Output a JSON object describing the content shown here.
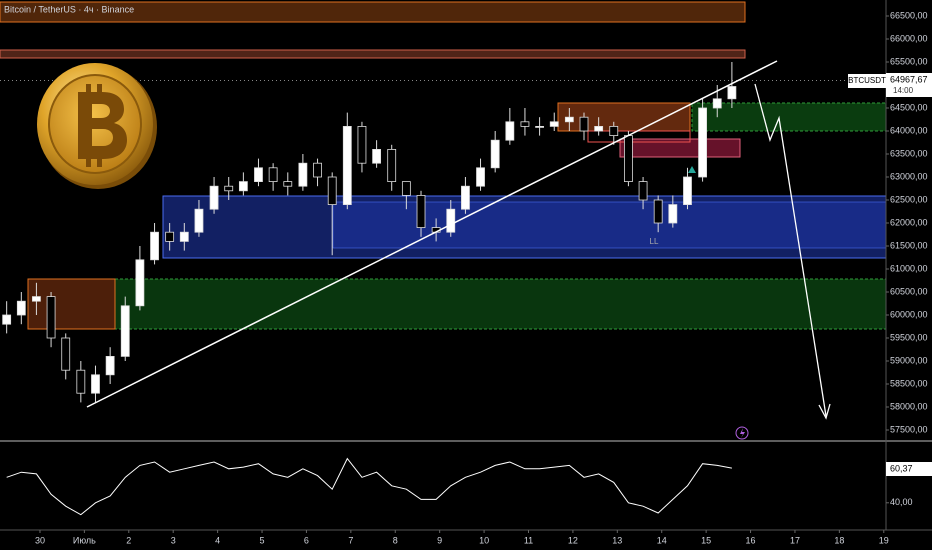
{
  "chart_data": [
    {
      "type": "candlestick",
      "title": "Bitcoin / TetherUS · 4ч · Binance",
      "symbol": "BTCUSDT",
      "last_label": "64967,67",
      "time_left": "14:00",
      "annotations": [
        "LL"
      ],
      "up_color": "#ffffff",
      "down_color": "#000000",
      "x": [
        -1.75,
        -1.42,
        -1.08,
        -0.75,
        -0.42,
        -0.08,
        0.25,
        0.58,
        0.92,
        1.25,
        1.58,
        1.92,
        2.25,
        2.58,
        2.92,
        3.25,
        3.58,
        3.92,
        4.25,
        4.58,
        4.92,
        5.25,
        5.58,
        5.92,
        6.25,
        6.58,
        6.92,
        7.25,
        7.58,
        7.92,
        8.25,
        8.58,
        8.92,
        9.25,
        9.58,
        9.92,
        10.25,
        10.58,
        10.92,
        11.25,
        11.58,
        11.92,
        12.25,
        12.58,
        12.92,
        13.25,
        13.58,
        13.92,
        14.25,
        14.58
      ],
      "open": [
        59800,
        60000,
        60300,
        60400,
        59500,
        58800,
        58300,
        58700,
        59100,
        60200,
        61200,
        61800,
        61600,
        61800,
        62300,
        62800,
        62700,
        62900,
        63200,
        62900,
        62800,
        63300,
        63000,
        62400,
        64100,
        63300,
        63600,
        62900,
        62600,
        61900,
        61800,
        62300,
        62800,
        63200,
        63800,
        64200,
        64100,
        64100,
        64200,
        64300,
        64000,
        64100,
        63900,
        62900,
        62500,
        62000,
        62400,
        63000,
        64500,
        64700
      ],
      "high": [
        60300,
        60500,
        60700,
        60500,
        59600,
        59000,
        58900,
        59300,
        60400,
        61500,
        62000,
        62000,
        62000,
        62500,
        63000,
        63000,
        63100,
        63400,
        63300,
        63100,
        63500,
        63400,
        63100,
        64400,
        64200,
        63800,
        63700,
        62900,
        62700,
        62100,
        62500,
        63000,
        63400,
        64000,
        64500,
        64500,
        64300,
        64400,
        64500,
        64400,
        64300,
        64200,
        64000,
        63000,
        62600,
        62600,
        63200,
        64700,
        65000,
        65500
      ],
      "low": [
        59600,
        59800,
        60000,
        59300,
        58600,
        58100,
        58100,
        58500,
        59000,
        60100,
        61100,
        61400,
        61400,
        61700,
        62200,
        62500,
        62600,
        62800,
        62700,
        62600,
        62700,
        62800,
        61300,
        62300,
        63100,
        63200,
        62700,
        62300,
        61700,
        61600,
        61700,
        62200,
        62700,
        63100,
        63700,
        63900,
        63900,
        64000,
        64000,
        63800,
        63900,
        63700,
        62800,
        62300,
        61800,
        61900,
        62300,
        62900,
        64300,
        64500
      ],
      "close": [
        60000,
        60300,
        60400,
        59500,
        58800,
        58300,
        58700,
        59100,
        60200,
        61200,
        61800,
        61600,
        61800,
        62300,
        62800,
        62700,
        62900,
        63200,
        62900,
        62800,
        63300,
        63000,
        62400,
        64100,
        63300,
        63600,
        62900,
        62600,
        61900,
        61800,
        62300,
        62800,
        63200,
        63800,
        64200,
        64100,
        64100,
        64200,
        64300,
        64000,
        64100,
        63900,
        62900,
        62500,
        62000,
        62400,
        63000,
        64500,
        64700,
        64967.67
      ],
      "xlim": [
        -1.9,
        18.05
      ],
      "xticks": [
        {
          "value": -1,
          "label": "30"
        },
        {
          "value": 0,
          "label": "Июль"
        },
        {
          "value": 1,
          "label": "2"
        },
        {
          "value": 2,
          "label": "3"
        },
        {
          "value": 3,
          "label": "4"
        },
        {
          "value": 4,
          "label": "5"
        },
        {
          "value": 5,
          "label": "6"
        },
        {
          "value": 6,
          "label": "7"
        },
        {
          "value": 7,
          "label": "8"
        },
        {
          "value": 8,
          "label": "9"
        },
        {
          "value": 9,
          "label": "10"
        },
        {
          "value": 10,
          "label": "11"
        },
        {
          "value": 11,
          "label": "12"
        },
        {
          "value": 12,
          "label": "13"
        },
        {
          "value": 13,
          "label": "14"
        },
        {
          "value": 14,
          "label": "15"
        },
        {
          "value": 15,
          "label": "16"
        },
        {
          "value": 16,
          "label": "17"
        },
        {
          "value": 17,
          "label": "18"
        },
        {
          "value": 18,
          "label": "19"
        }
      ],
      "ylim": [
        57282.6,
        66847.8
      ],
      "yticks": [
        {
          "value": 57500,
          "label": "57500,00"
        },
        {
          "value": 58000,
          "label": "58000,00"
        },
        {
          "value": 58500,
          "label": "58500,00"
        },
        {
          "value": 59000,
          "label": "59000,00"
        },
        {
          "value": 59500,
          "label": "59500,00"
        },
        {
          "value": 60000,
          "label": "60000,00"
        },
        {
          "value": 60500,
          "label": "60500,00"
        },
        {
          "value": 61000,
          "label": "61000,00"
        },
        {
          "value": 61500,
          "label": "61500,00"
        },
        {
          "value": 62000,
          "label": "62000,00"
        },
        {
          "value": 62500,
          "label": "62500,00"
        },
        {
          "value": 63000,
          "label": "63000,00"
        },
        {
          "value": 63500,
          "label": "63500,00"
        },
        {
          "value": 64000,
          "label": "64000,00"
        },
        {
          "value": 64500,
          "label": "64500,00"
        },
        {
          "value": 65500,
          "label": "65500,00"
        },
        {
          "value": 66000,
          "label": "66000,00"
        },
        {
          "value": 66500,
          "label": "66500,00"
        }
      ]
    },
    {
      "type": "line",
      "color": "#ffffff",
      "last_label": "60,37",
      "x": [
        -1.75,
        -1.42,
        -1.08,
        -0.75,
        -0.42,
        -0.08,
        0.25,
        0.58,
        0.92,
        1.25,
        1.58,
        1.92,
        2.25,
        2.58,
        2.92,
        3.25,
        3.58,
        3.92,
        4.25,
        4.58,
        4.92,
        5.25,
        5.58,
        5.92,
        6.25,
        6.58,
        6.92,
        7.25,
        7.58,
        7.92,
        8.25,
        8.58,
        8.92,
        9.25,
        9.58,
        9.92,
        10.25,
        10.58,
        10.92,
        11.25,
        11.58,
        11.92,
        12.25,
        12.58,
        12.92,
        13.25,
        13.58,
        13.92,
        14.25,
        14.58
      ],
      "values": [
        55,
        58,
        57,
        45,
        38,
        33,
        40,
        44,
        55,
        62,
        64,
        58,
        60,
        62,
        64,
        60,
        61,
        63,
        57,
        55,
        60,
        56,
        48,
        66,
        55,
        58,
        50,
        48,
        42,
        42,
        50,
        55,
        58,
        62,
        64,
        60,
        60,
        61,
        62,
        55,
        57,
        52,
        40,
        38,
        34,
        42,
        50,
        63,
        62,
        60.37
      ],
      "xlim": [
        -1.9,
        18.05
      ],
      "ylim": [
        24,
        74
      ],
      "yticks": [
        {
          "value": 40,
          "label": "40,00"
        }
      ]
    }
  ]
}
